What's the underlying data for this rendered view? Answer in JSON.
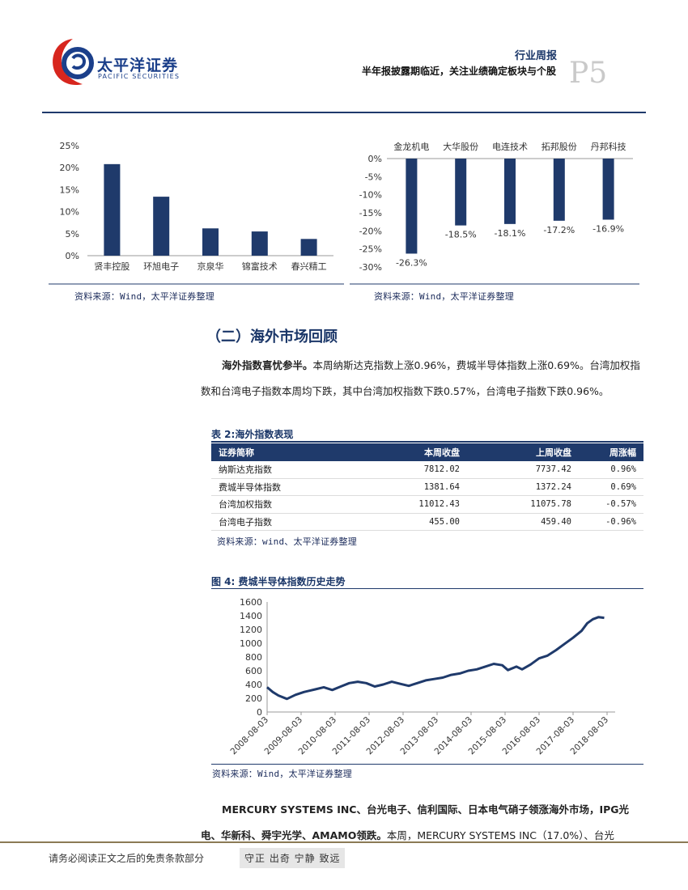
{
  "header": {
    "logo_cn": "太平洋证券",
    "logo_en": "PACIFIC SECURITIES",
    "report_type": "行业周报",
    "report_title": "半年报披露期临近，关注业绩确定板块与个股",
    "page_number": "P5"
  },
  "colors": {
    "navy": "#1f3a6b",
    "accent_red": "#d7261e"
  },
  "left_chart": {
    "chart_data": {
      "type": "bar",
      "categories": [
        "贤丰控股",
        "环旭电子",
        "京泉华",
        "锦富技术",
        "春兴精工"
      ],
      "values": [
        20.8,
        13.4,
        6.2,
        5.5,
        3.8
      ],
      "ytick_labels": [
        "0%",
        "5%",
        "10%",
        "15%",
        "20%",
        "25%"
      ],
      "ylim": [
        0,
        25
      ]
    },
    "source": "资料来源：Wind，太平洋证券整理"
  },
  "right_chart": {
    "chart_data": {
      "type": "bar",
      "categories": [
        "金龙机电",
        "大华股份",
        "电连技术",
        "拓邦股份",
        "丹邦科技"
      ],
      "values": [
        -26.3,
        -18.5,
        -18.1,
        -17.2,
        -16.9
      ],
      "data_labels": [
        "-26.3%",
        "-18.5%",
        "-18.1%",
        "-17.2%",
        "-16.9%"
      ],
      "ytick_labels": [
        "0%",
        "-5%",
        "-10%",
        "-15%",
        "-20%",
        "-25%",
        "-30%"
      ],
      "ylim": [
        -30,
        0
      ]
    },
    "source": "资料来源：Wind，太平洋证券整理"
  },
  "section": {
    "heading": "（二）海外市场回顾",
    "para_lead": "海外指数喜忧参半。",
    "para_text": "本周纳斯达克指数上涨0.96%，费城半导体指数上涨0.69%。台湾加权指数和台湾电子指数本周均下跌，其中台湾加权指数下跌0.57%，台湾电子指数下跌0.96%。"
  },
  "table": {
    "caption": "表 2:海外指数表现",
    "headers": [
      "证券简称",
      "本周收盘",
      "上周收盘",
      "周涨幅"
    ],
    "rows": [
      [
        "纳斯达克指数",
        "7812.02",
        "7737.42",
        "0.96%"
      ],
      [
        "费城半导体指数",
        "1381.64",
        "1372.24",
        "0.69%"
      ],
      [
        "台湾加权指数",
        "11012.43",
        "11075.78",
        "-0.57%"
      ],
      [
        "台湾电子指数",
        "455.00",
        "459.40",
        "-0.96%"
      ]
    ],
    "source": "资料来源：wind、太平洋证券整理"
  },
  "figure": {
    "caption": "图 4:  费城半导体指数历史走势",
    "source": "资料来源：Wind，太平洋证券整理",
    "chart_data": {
      "type": "line",
      "ytick_labels": [
        "0",
        "200",
        "400",
        "600",
        "800",
        "1000",
        "1200",
        "1400",
        "1600"
      ],
      "ylim": [
        0,
        1600
      ],
      "xtick_labels": [
        "2008-08-03",
        "2009-08-03",
        "2010-08-03",
        "2011-08-03",
        "2012-08-03",
        "2013-08-03",
        "2014-08-03",
        "2015-08-03",
        "2016-08-03",
        "2017-08-03",
        "2018-08-03"
      ],
      "x": [
        "2008-08",
        "2008-10",
        "2008-12",
        "2009-03",
        "2009-06",
        "2009-09",
        "2010-01",
        "2010-04",
        "2010-07",
        "2010-10",
        "2011-01",
        "2011-04",
        "2011-07",
        "2011-10",
        "2012-01",
        "2012-04",
        "2012-07",
        "2012-10",
        "2013-01",
        "2013-04",
        "2013-07",
        "2013-10",
        "2014-01",
        "2014-04",
        "2014-07",
        "2014-10",
        "2015-01",
        "2015-04",
        "2015-07",
        "2015-09",
        "2015-12",
        "2016-02",
        "2016-05",
        "2016-08",
        "2016-11",
        "2017-02",
        "2017-05",
        "2017-08",
        "2017-11",
        "2018-01",
        "2018-03",
        "2018-05",
        "2018-07"
      ],
      "y": [
        360,
        290,
        240,
        190,
        250,
        290,
        330,
        360,
        320,
        370,
        420,
        440,
        420,
        370,
        400,
        440,
        410,
        380,
        420,
        460,
        480,
        500,
        540,
        560,
        600,
        620,
        660,
        700,
        680,
        610,
        660,
        620,
        690,
        780,
        820,
        900,
        990,
        1080,
        1180,
        1290,
        1350,
        1380,
        1370
      ]
    }
  },
  "section2": {
    "para_lead": "MERCURY SYSTEMS INC、台光电子、信利国际、日本电气硝子领涨海外市场，IPG光电、华新科、舜宇光学、AMAMO领跌。",
    "para_text": "本周，MERCURY SYSTEMS INC（17.0%）、台光"
  },
  "footer": {
    "notice": "请务必阅读正文之后的免责条款部分",
    "motto": "守正 出奇 宁静 致远"
  }
}
